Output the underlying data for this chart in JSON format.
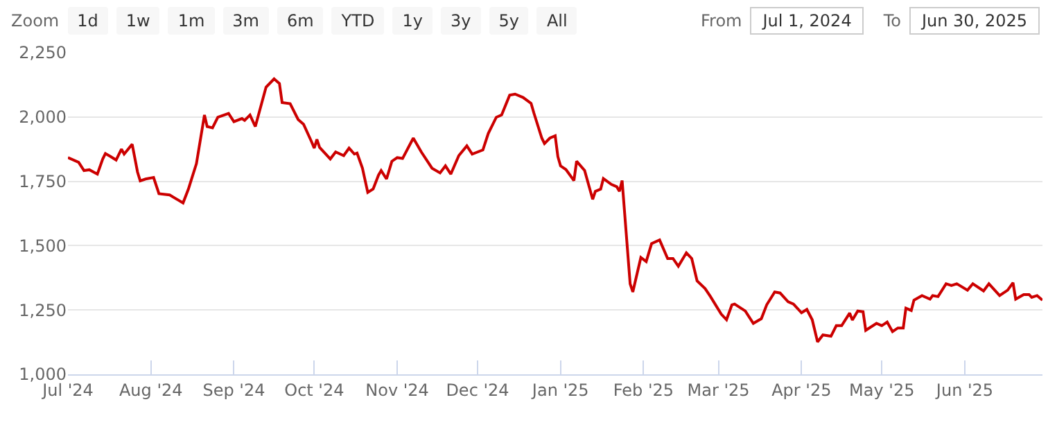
{
  "chart_data": {
    "type": "line",
    "annotations": [
      "Zoom",
      "1d",
      "1w",
      "1m",
      "3m",
      "6m",
      "YTD",
      "1y",
      "3y",
      "5y",
      "All",
      "From",
      "Jul 1, 2024",
      "To",
      "Jun 30, 2025"
    ],
    "x": [
      "2024-07-01",
      "2024-07-05",
      "2024-07-07",
      "2024-07-09",
      "2024-07-12",
      "2024-07-14",
      "2024-07-15",
      "2024-07-17",
      "2024-07-19",
      "2024-07-21",
      "2024-07-22",
      "2024-07-25",
      "2024-07-27",
      "2024-07-28",
      "2024-07-30",
      "2024-08-02",
      "2024-08-04",
      "2024-08-08",
      "2024-08-13",
      "2024-08-15",
      "2024-08-18",
      "2024-08-21",
      "2024-08-22",
      "2024-08-24",
      "2024-08-26",
      "2024-08-30",
      "2024-09-01",
      "2024-09-04",
      "2024-09-05",
      "2024-09-07",
      "2024-09-09",
      "2024-09-13",
      "2024-09-16",
      "2024-09-18",
      "2024-09-19",
      "2024-09-22",
      "2024-09-25",
      "2024-09-27",
      "2024-09-30",
      "2024-10-01",
      "2024-10-02",
      "2024-10-03",
      "2024-10-07",
      "2024-10-09",
      "2024-10-12",
      "2024-10-14",
      "2024-10-16",
      "2024-10-17",
      "2024-10-19",
      "2024-10-21",
      "2024-10-23",
      "2024-10-25",
      "2024-10-26",
      "2024-10-28",
      "2024-10-30",
      "2024-11-01",
      "2024-11-03",
      "2024-11-07",
      "2024-11-10",
      "2024-11-14",
      "2024-11-17",
      "2024-11-19",
      "2024-11-21",
      "2024-11-24",
      "2024-11-27",
      "2024-11-29",
      "2024-12-03",
      "2024-12-05",
      "2024-12-08",
      "2024-12-10",
      "2024-12-13",
      "2024-12-15",
      "2024-12-18",
      "2024-12-21",
      "2024-12-22",
      "2024-12-25",
      "2024-12-26",
      "2024-12-28",
      "2024-12-30",
      "2024-12-31",
      "2025-01-01",
      "2025-01-03",
      "2025-01-06",
      "2025-01-07",
      "2025-01-10",
      "2025-01-13",
      "2025-01-14",
      "2025-01-16",
      "2025-01-17",
      "2025-01-20",
      "2025-01-22",
      "2025-01-23",
      "2025-01-24",
      "2025-01-27",
      "2025-01-28",
      "2025-01-29",
      "2025-01-31",
      "2025-02-02",
      "2025-02-04",
      "2025-02-07",
      "2025-02-10",
      "2025-02-12",
      "2025-02-14",
      "2025-02-17",
      "2025-02-19",
      "2025-02-21",
      "2025-02-24",
      "2025-02-26",
      "2025-03-02",
      "2025-03-04",
      "2025-03-06",
      "2025-03-07",
      "2025-03-11",
      "2025-03-14",
      "2025-03-17",
      "2025-03-19",
      "2025-03-22",
      "2025-03-24",
      "2025-03-27",
      "2025-03-29",
      "2025-04-01",
      "2025-04-03",
      "2025-04-05",
      "2025-04-07",
      "2025-04-09",
      "2025-04-12",
      "2025-04-14",
      "2025-04-16",
      "2025-04-19",
      "2025-04-20",
      "2025-04-22",
      "2025-04-24",
      "2025-04-25",
      "2025-04-29",
      "2025-05-01",
      "2025-05-03",
      "2025-05-05",
      "2025-05-07",
      "2025-05-09",
      "2025-05-10",
      "2025-05-12",
      "2025-05-13",
      "2025-05-16",
      "2025-05-19",
      "2025-05-20",
      "2025-05-22",
      "2025-05-25",
      "2025-05-27",
      "2025-05-29",
      "2025-06-02",
      "2025-06-04",
      "2025-06-08",
      "2025-06-10",
      "2025-06-14",
      "2025-06-17",
      "2025-06-19",
      "2025-06-20",
      "2025-06-23",
      "2025-06-25",
      "2025-06-26",
      "2025-06-28",
      "2025-06-30"
    ],
    "series": [
      {
        "color": "#cc0000",
        "values": [
          1842,
          1824,
          1792,
          1795,
          1778,
          1837,
          1858,
          1846,
          1833,
          1875,
          1856,
          1894,
          1786,
          1752,
          1759,
          1765,
          1702,
          1697,
          1666,
          1720,
          1819,
          2008,
          1963,
          1958,
          1999,
          2014,
          1982,
          1994,
          1987,
          2008,
          1963,
          2116,
          2148,
          2130,
          2056,
          2052,
          1990,
          1972,
          1904,
          1879,
          1913,
          1882,
          1837,
          1864,
          1850,
          1879,
          1856,
          1860,
          1801,
          1707,
          1720,
          1774,
          1792,
          1759,
          1828,
          1842,
          1839,
          1918,
          1864,
          1801,
          1783,
          1810,
          1778,
          1850,
          1888,
          1856,
          1872,
          1936,
          1999,
          2008,
          2085,
          2089,
          2076,
          2053,
          2017,
          1918,
          1897,
          1918,
          1927,
          1846,
          1810,
          1796,
          1753,
          1828,
          1792,
          1680,
          1711,
          1720,
          1761,
          1738,
          1729,
          1711,
          1753,
          1351,
          1320,
          1365,
          1454,
          1438,
          1508,
          1522,
          1450,
          1450,
          1420,
          1472,
          1450,
          1363,
          1333,
          1302,
          1234,
          1212,
          1270,
          1273,
          1246,
          1198,
          1216,
          1270,
          1320,
          1316,
          1282,
          1273,
          1239,
          1252,
          1212,
          1126,
          1153,
          1148,
          1189,
          1189,
          1238,
          1211,
          1246,
          1243,
          1171,
          1198,
          1189,
          1203,
          1166,
          1180,
          1180,
          1257,
          1248,
          1288,
          1306,
          1292,
          1306,
          1302,
          1352,
          1345,
          1352,
          1327,
          1352,
          1324,
          1352,
          1306,
          1327,
          1356,
          1292,
          1310,
          1310,
          1299,
          1306,
          1288
        ]
      }
    ],
    "xlim": [
      "2024-07-01",
      "2025-06-30"
    ],
    "xticks": [
      {
        "value": "2024-07-01",
        "label": "Jul '24"
      },
      {
        "value": "2024-08-01",
        "label": "Aug '24"
      },
      {
        "value": "2024-09-01",
        "label": "Sep '24"
      },
      {
        "value": "2024-10-01",
        "label": "Oct '24"
      },
      {
        "value": "2024-11-01",
        "label": "Nov '24"
      },
      {
        "value": "2024-12-01",
        "label": "Dec '24"
      },
      {
        "value": "2025-01-01",
        "label": "Jan '25"
      },
      {
        "value": "2025-02-01",
        "label": "Feb '25"
      },
      {
        "value": "2025-03-01",
        "label": "Mar '25"
      },
      {
        "value": "2025-04-01",
        "label": "Apr '25"
      },
      {
        "value": "2025-05-01",
        "label": "May '25"
      },
      {
        "value": "2025-06-01",
        "label": "Jun '25"
      }
    ],
    "ylim": [
      1000,
      2250
    ],
    "yticks": [
      {
        "value": 1000,
        "label": "1,000"
      },
      {
        "value": 1250,
        "label": "1,250"
      },
      {
        "value": 1500,
        "label": "1,500"
      },
      {
        "value": 1750,
        "label": "1,750"
      },
      {
        "value": 2000,
        "label": "2,000"
      },
      {
        "value": 2250,
        "label": "2,250"
      }
    ],
    "grid": "y",
    "marker": "none",
    "line_style": "solid"
  }
}
